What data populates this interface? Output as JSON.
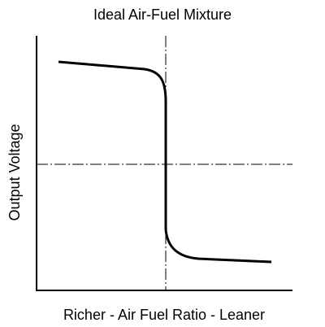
{
  "title": "Ideal Air-Fuel Mixture",
  "y_axis_label": "Output Voltage",
  "x_axis_label": "Richer - Air Fuel Ratio - Leaner"
}
